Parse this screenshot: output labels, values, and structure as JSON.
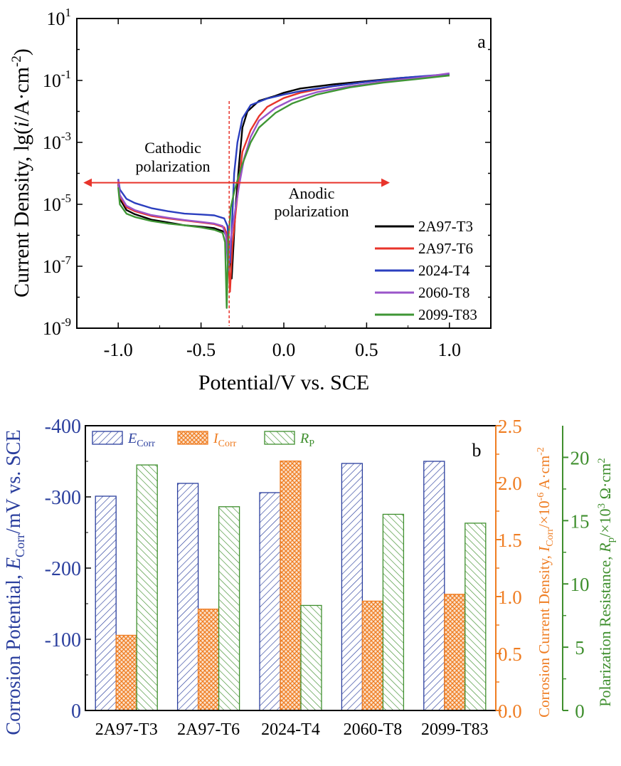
{
  "chart_data": [
    {
      "id": "a",
      "type": "line",
      "panel_label": "a",
      "xlabel": "Potential/V vs. SCE",
      "ylabel_parts": [
        "Current Density, lg(",
        "i",
        "/A·cm",
        "-2",
        ")"
      ],
      "x_ticks": [
        -1.0,
        -0.5,
        0.0,
        0.5,
        1.0
      ],
      "x_tick_labels": [
        "-1.0",
        "-0.5",
        "0.0",
        "0.5",
        "1.0"
      ],
      "xlim": [
        -1.25,
        1.25
      ],
      "y_scale": "log",
      "ylim": [
        1e-09,
        10
      ],
      "y_ticks": [
        {
          "base": "10",
          "exp": "1"
        },
        {
          "base": "10",
          "exp": "-1"
        },
        {
          "base": "10",
          "exp": "-3"
        },
        {
          "base": "10",
          "exp": "-5"
        },
        {
          "base": "10",
          "exp": "-7"
        },
        {
          "base": "10",
          "exp": "-9"
        }
      ],
      "annotations": {
        "cathodic": [
          "Cathodic",
          "polarization"
        ],
        "anodic": [
          "Anodic",
          "polarization"
        ],
        "divider_x": -0.33,
        "arrow_y": 5e-05,
        "cathodic_arrow_x": [
          -0.33,
          -1.2
        ],
        "anodic_arrow_x": [
          -0.33,
          0.63
        ]
      },
      "legend_position": "bottom-right",
      "series": [
        {
          "name": "2A97-T3",
          "color": "#000000",
          "points": [
            [
              -1.0,
              4.5e-05
            ],
            [
              -0.99,
              1.5e-05
            ],
            [
              -0.95,
              6.5e-06
            ],
            [
              -0.9,
              4.8e-06
            ],
            [
              -0.8,
              3.2e-06
            ],
            [
              -0.7,
              2.6e-06
            ],
            [
              -0.6,
              2.1e-06
            ],
            [
              -0.5,
              1.9e-06
            ],
            [
              -0.42,
              1.7e-06
            ],
            [
              -0.36,
              1.3e-06
            ],
            [
              -0.33,
              6e-07
            ],
            [
              -0.315,
              4e-08
            ],
            [
              -0.3,
              1.2e-06
            ],
            [
              -0.29,
              1e-05
            ],
            [
              -0.27,
              0.0002
            ],
            [
              -0.25,
              0.003
            ],
            [
              -0.22,
              0.01
            ],
            [
              -0.15,
              0.022
            ],
            [
              -0.05,
              0.032
            ],
            [
              0.0,
              0.04
            ],
            [
              0.1,
              0.055
            ],
            [
              0.3,
              0.075
            ],
            [
              0.5,
              0.095
            ],
            [
              0.7,
              0.12
            ],
            [
              1.0,
              0.155
            ]
          ]
        },
        {
          "name": "2A97-T6",
          "color": "#e8342b",
          "points": [
            [
              -1.0,
              5e-05
            ],
            [
              -0.99,
              1.8e-05
            ],
            [
              -0.95,
              8e-06
            ],
            [
              -0.9,
              6e-06
            ],
            [
              -0.8,
              4.2e-06
            ],
            [
              -0.7,
              3.5e-06
            ],
            [
              -0.6,
              3e-06
            ],
            [
              -0.5,
              2.6e-06
            ],
            [
              -0.42,
              2.3e-06
            ],
            [
              -0.36,
              1.8e-06
            ],
            [
              -0.34,
              1e-06
            ],
            [
              -0.325,
              1.5e-08
            ],
            [
              -0.31,
              5e-07
            ],
            [
              -0.29,
              6e-06
            ],
            [
              -0.27,
              6e-05
            ],
            [
              -0.25,
              0.0005
            ],
            [
              -0.2,
              0.0025
            ],
            [
              -0.15,
              0.007
            ],
            [
              -0.1,
              0.014
            ],
            [
              0.0,
              0.027
            ],
            [
              0.1,
              0.04
            ],
            [
              0.3,
              0.065
            ],
            [
              0.5,
              0.09
            ],
            [
              0.7,
              0.115
            ],
            [
              1.0,
              0.145
            ]
          ]
        },
        {
          "name": "2024-T4",
          "color": "#2b3fbf",
          "points": [
            [
              -1.0,
              6.5e-05
            ],
            [
              -0.99,
              3e-05
            ],
            [
              -0.95,
              1.5e-05
            ],
            [
              -0.9,
              1.1e-05
            ],
            [
              -0.8,
              7.5e-06
            ],
            [
              -0.7,
              6e-06
            ],
            [
              -0.6,
              5e-06
            ],
            [
              -0.5,
              4.7e-06
            ],
            [
              -0.42,
              4.4e-06
            ],
            [
              -0.36,
              3.5e-06
            ],
            [
              -0.34,
              2e-06
            ],
            [
              -0.325,
              1.3e-07
            ],
            [
              -0.31,
              5e-06
            ],
            [
              -0.3,
              0.0001
            ],
            [
              -0.28,
              0.001
            ],
            [
              -0.25,
              0.006
            ],
            [
              -0.2,
              0.016
            ],
            [
              -0.1,
              0.026
            ],
            [
              0.0,
              0.035
            ],
            [
              0.1,
              0.045
            ],
            [
              0.3,
              0.065
            ],
            [
              0.5,
              0.09
            ],
            [
              0.7,
              0.12
            ],
            [
              1.0,
              0.16
            ]
          ]
        },
        {
          "name": "2060-T8",
          "color": "#9a55c9",
          "points": [
            [
              -1.0,
              6e-05
            ],
            [
              -0.99,
              2e-05
            ],
            [
              -0.95,
              9e-06
            ],
            [
              -0.9,
              6.5e-06
            ],
            [
              -0.8,
              4.5e-06
            ],
            [
              -0.7,
              3.7e-06
            ],
            [
              -0.6,
              3.1e-06
            ],
            [
              -0.5,
              2.7e-06
            ],
            [
              -0.42,
              2.4e-06
            ],
            [
              -0.37,
              2e-06
            ],
            [
              -0.35,
              1e-06
            ],
            [
              -0.335,
              7e-08
            ],
            [
              -0.32,
              8e-07
            ],
            [
              -0.3,
              4e-06
            ],
            [
              -0.27,
              4e-05
            ],
            [
              -0.24,
              0.0003
            ],
            [
              -0.2,
              0.0015
            ],
            [
              -0.15,
              0.005
            ],
            [
              -0.05,
              0.013
            ],
            [
              0.05,
              0.024
            ],
            [
              0.2,
              0.042
            ],
            [
              0.4,
              0.065
            ],
            [
              0.6,
              0.09
            ],
            [
              0.8,
              0.12
            ],
            [
              1.0,
              0.17
            ]
          ]
        },
        {
          "name": "2099-T83",
          "color": "#3f9635",
          "points": [
            [
              -1.0,
              3.5e-05
            ],
            [
              -0.99,
              1e-05
            ],
            [
              -0.95,
              5e-06
            ],
            [
              -0.9,
              3.9e-06
            ],
            [
              -0.8,
              2.9e-06
            ],
            [
              -0.7,
              2.4e-06
            ],
            [
              -0.6,
              2.1e-06
            ],
            [
              -0.5,
              1.8e-06
            ],
            [
              -0.42,
              1.5e-06
            ],
            [
              -0.37,
              1.2e-06
            ],
            [
              -0.355,
              6e-07
            ],
            [
              -0.345,
              4.5e-09
            ],
            [
              -0.335,
              7e-07
            ],
            [
              -0.32,
              8e-06
            ],
            [
              -0.3,
              2.5e-05
            ],
            [
              -0.28,
              6e-05
            ],
            [
              -0.25,
              0.0002
            ],
            [
              -0.2,
              0.001
            ],
            [
              -0.15,
              0.003
            ],
            [
              -0.05,
              0.009
            ],
            [
              0.05,
              0.018
            ],
            [
              0.2,
              0.035
            ],
            [
              0.4,
              0.06
            ],
            [
              0.6,
              0.085
            ],
            [
              0.8,
              0.11
            ],
            [
              1.0,
              0.145
            ]
          ]
        }
      ]
    },
    {
      "id": "b",
      "type": "bar",
      "panel_label": "b",
      "categories": [
        "2A97-T3",
        "2A97-T6",
        "2024-T4",
        "2060-T8",
        "2099-T83"
      ],
      "left_axis": {
        "label_parts": [
          "Corrosion Potential, ",
          "E",
          "Corr",
          "/mV vs. SCE"
        ],
        "ticks": [
          0,
          -100,
          -200,
          -300,
          -400
        ],
        "tick_labels": [
          "0",
          "-100",
          "-200",
          "-300",
          "-400"
        ],
        "range_abs": [
          0,
          400
        ],
        "color": "#2b3f9e"
      },
      "right_axis_1": {
        "label_parts": [
          "Corrosion Current Density, ",
          "I",
          "Corr",
          "/×10",
          "-6",
          " A·cm",
          "-2"
        ],
        "ticks": [
          0.0,
          0.5,
          1.0,
          1.5,
          2.0,
          2.5
        ],
        "tick_labels": [
          "0.0",
          "0.5",
          "1.0",
          "1.5",
          "2.0",
          "2.5"
        ],
        "range": [
          0,
          2.5
        ],
        "color": "#ef7d22"
      },
      "right_axis_2": {
        "label_parts": [
          "Polarization Resistance, ",
          "R",
          "p",
          "/×10",
          "3",
          " Ω·cm",
          "2"
        ],
        "ticks": [
          0,
          5,
          10,
          15,
          20
        ],
        "tick_labels": [
          "0",
          "5",
          "10",
          "15",
          "20"
        ],
        "range": [
          0,
          22.5
        ],
        "color": "#3f8f2e"
      },
      "legend_position": "top-left",
      "series": [
        {
          "name": "E_Corr",
          "label_main": "E",
          "label_sub": "Corr",
          "axis": "left",
          "color": "#2b3f9e",
          "values": [
            -301,
            -319,
            -306,
            -347,
            -350
          ]
        },
        {
          "name": "I_Corr",
          "label_main": "I",
          "label_sub": "Corr",
          "axis": "right_1",
          "color": "#ef7d22",
          "values": [
            0.66,
            0.89,
            2.19,
            0.96,
            1.02
          ]
        },
        {
          "name": "R_P",
          "label_main": "R",
          "label_sub": "P",
          "axis": "right_2",
          "color": "#3f8f2e",
          "values": [
            19.4,
            16.1,
            8.3,
            15.5,
            14.8
          ]
        }
      ]
    }
  ]
}
